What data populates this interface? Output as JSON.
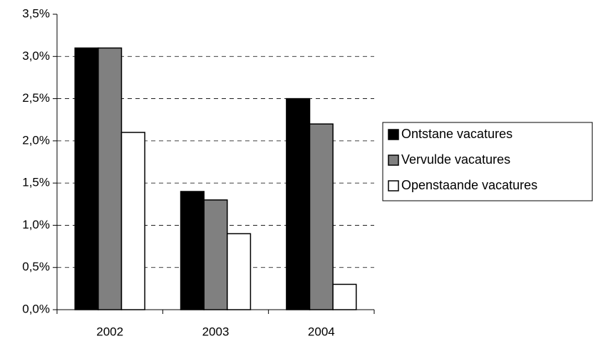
{
  "chart_data": {
    "type": "bar",
    "categories": [
      "2002",
      "2003",
      "2004"
    ],
    "series": [
      {
        "name": "Ontstane vacatures",
        "color": "#000000",
        "values": [
          3.1,
          1.4,
          2.5
        ]
      },
      {
        "name": "Vervulde vacatures",
        "color": "#808080",
        "values": [
          3.1,
          1.3,
          2.2
        ]
      },
      {
        "name": "Openstaande vacatures",
        "color": "#ffffff",
        "values": [
          2.1,
          0.9,
          0.3
        ]
      }
    ],
    "ylim": [
      0,
      3.5
    ],
    "yticks": [
      {
        "value": 0,
        "label": "0,0%"
      },
      {
        "value": 0.5,
        "label": "0,5%"
      },
      {
        "value": 1,
        "label": "1,0%"
      },
      {
        "value": 1.5,
        "label": "1,5%"
      },
      {
        "value": 2,
        "label": "2,0%"
      },
      {
        "value": 2.5,
        "label": "2,5%"
      },
      {
        "value": 3,
        "label": "3,0%"
      },
      {
        "value": 3.5,
        "label": "3,5%"
      }
    ],
    "grid": true,
    "legend": "right"
  }
}
